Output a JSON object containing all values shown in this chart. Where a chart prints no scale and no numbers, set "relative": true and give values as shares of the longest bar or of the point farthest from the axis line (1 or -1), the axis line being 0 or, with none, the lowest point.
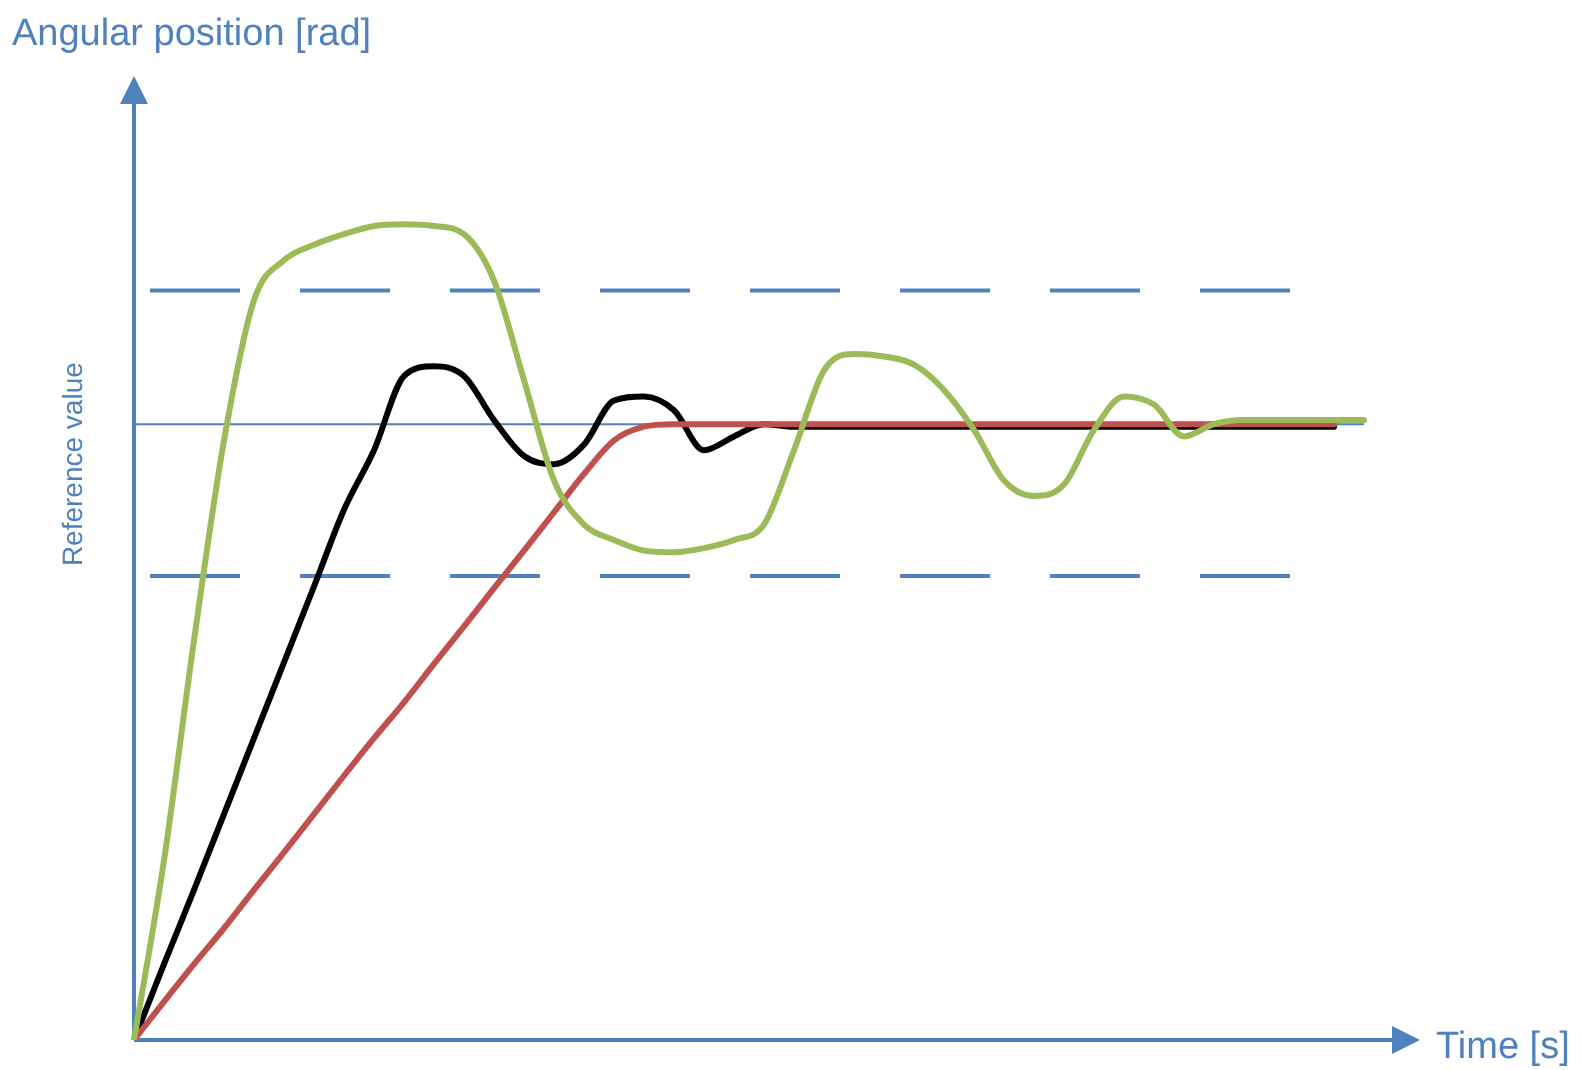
{
  "chart_data": {
    "type": "line",
    "relative": true,
    "ylabel": "Angular position [rad]",
    "xlabel": "Time [s]",
    "marker": "none",
    "legend": false,
    "tick_labels": false,
    "categories": [
      null,
      null,
      null,
      null,
      null,
      null,
      null,
      null,
      null,
      null,
      null,
      null,
      null,
      null,
      null,
      null,
      null,
      null,
      null,
      null,
      null,
      null,
      null,
      null,
      null,
      null,
      null,
      null,
      null,
      null,
      null,
      null,
      null,
      null,
      null,
      null,
      null,
      null,
      null,
      null,
      null,
      null
    ],
    "series": [
      {
        "color": "#9bbb59",
        "values": [
          0,
          0.22,
          0.49,
          0.735,
          0.907,
          0.956,
          0.975,
          0.988,
          0.998,
          1,
          0.998,
          0.988,
          0.931,
          0.809,
          0.686,
          0.632,
          0.613,
          0.6,
          0.598,
          0.603,
          0.613,
          0.632,
          0.723,
          0.821,
          0.841,
          0.838,
          0.828,
          0.797,
          0.748,
          0.686,
          0.667,
          0.681,
          0.748,
          0.789,
          0.779,
          0.74,
          0.755,
          0.76,
          0.76,
          0.76,
          0.76,
          0.76
        ]
      },
      {
        "color": "#c0504d",
        "values": [
          0,
          0.047,
          0.093,
          0.137,
          0.184,
          0.23,
          0.277,
          0.324,
          0.37,
          0.414,
          0.461,
          0.507,
          0.554,
          0.6,
          0.647,
          0.694,
          0.735,
          0.752,
          0.755,
          0.755,
          0.755,
          0.755,
          0.755,
          0.755,
          0.755,
          0.755,
          0.755,
          0.755,
          0.755,
          0.755,
          0.755,
          0.755,
          0.755,
          0.755,
          0.755,
          0.755,
          0.755,
          0.755,
          0.755,
          0.755,
          0.755,
          null
        ]
      },
      {
        "color": "#000000",
        "values": [
          0,
          0.093,
          0.184,
          0.277,
          0.37,
          0.463,
          0.556,
          0.65,
          0.723,
          0.814,
          0.826,
          0.814,
          0.76,
          0.716,
          0.706,
          0.73,
          0.784,
          0.789,
          0.772,
          0.723,
          0.74,
          0.755,
          0.752,
          0.752,
          0.752,
          0.752,
          0.752,
          0.752,
          0.752,
          0.752,
          0.752,
          0.752,
          0.752,
          0.752,
          0.752,
          0.752,
          0.752,
          0.752,
          0.752,
          0.752,
          0.752,
          null
        ]
      }
    ],
    "ref_lines": [
      {
        "axis": "y",
        "value": 0.755,
        "label": "Reference value",
        "color": "#4f81bd",
        "line_style": "solid"
      },
      {
        "axis": "y",
        "value": 0.919,
        "color": "#4f81bd",
        "line_style": "dashed"
      },
      {
        "axis": "y",
        "value": 0.569,
        "color": "#4f81bd",
        "line_style": "dashed"
      }
    ]
  }
}
